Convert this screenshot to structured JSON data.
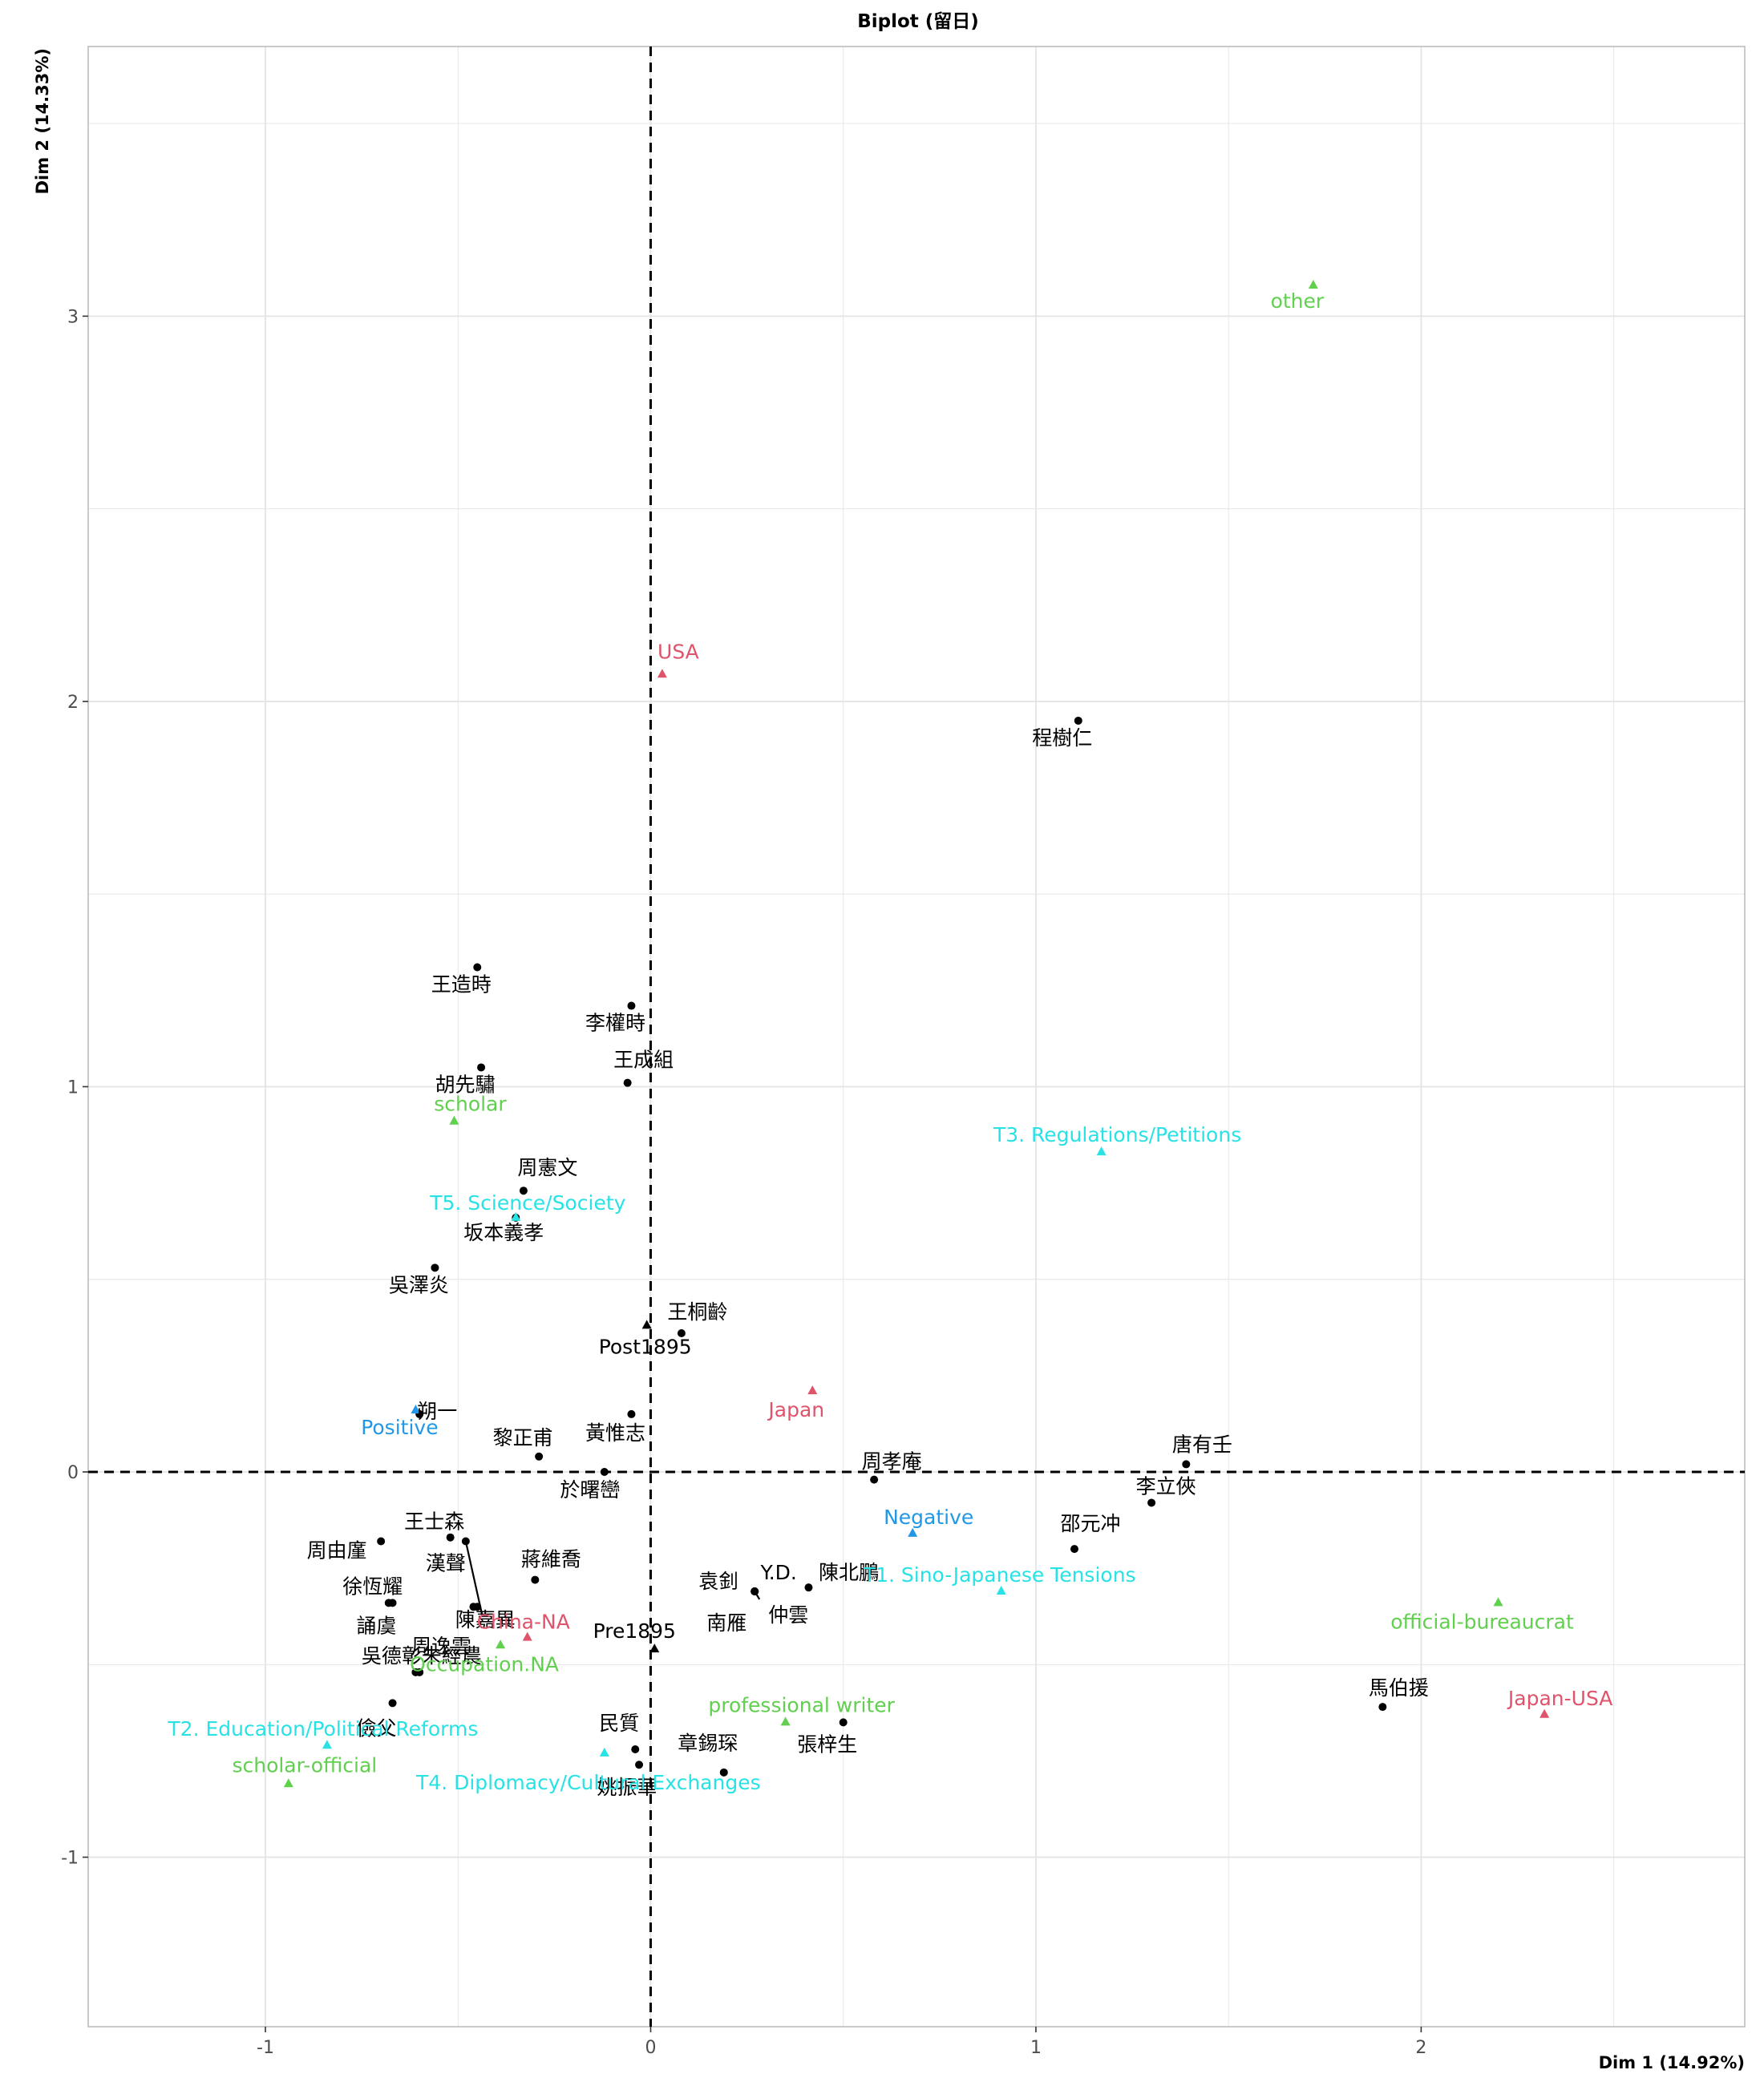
{
  "chart_data": {
    "type": "scatter",
    "title": "Biplot (留日)",
    "xlabel": "Dim 1 (14.92%)",
    "ylabel": "Dim 2 (14.33%)",
    "xlim": [
      -1.46,
      2.84
    ],
    "ylim": [
      -1.44,
      3.7
    ],
    "x_ticks": [
      -1,
      0,
      1,
      2
    ],
    "y_ticks": [
      -1,
      0,
      1,
      2,
      3
    ],
    "x_tick_labels": [
      "-1",
      "0",
      "1",
      "2"
    ],
    "y_tick_labels": [
      "-1",
      "0",
      "1",
      "2",
      "3"
    ],
    "grid": true,
    "reference_lines": {
      "x": 0,
      "y": 0,
      "style": "dashed"
    },
    "colors": {
      "individual": "#000000",
      "period": "#000000",
      "destination": "#DF536B",
      "occupation": "#61D04F",
      "topic": "#28E2E5",
      "sentiment": "#2297E6"
    },
    "individuals": [
      {
        "label": "程樹仁",
        "x": 1.11,
        "y": 1.95
      },
      {
        "label": "王造時",
        "x": -0.45,
        "y": 1.31
      },
      {
        "label": "李權時",
        "x": -0.05,
        "y": 1.21
      },
      {
        "label": "胡先驌",
        "x": -0.44,
        "y": 1.05
      },
      {
        "label": "王成組",
        "x": -0.06,
        "y": 1.01
      },
      {
        "label": "周憲文",
        "x": -0.33,
        "y": 0.73
      },
      {
        "label": "坂本義孝",
        "x": -0.35,
        "y": 0.66
      },
      {
        "label": "吳澤炎",
        "x": -0.56,
        "y": 0.53
      },
      {
        "label": "王桐齡",
        "x": 0.08,
        "y": 0.36
      },
      {
        "label": "朔一",
        "x": -0.6,
        "y": 0.15
      },
      {
        "label": "黃惟志",
        "x": -0.05,
        "y": 0.15
      },
      {
        "label": "黎正甫",
        "x": -0.29,
        "y": 0.04
      },
      {
        "label": "於曙巒",
        "x": -0.12,
        "y": 0.0
      },
      {
        "label": "周孝庵",
        "x": 0.58,
        "y": -0.02
      },
      {
        "label": "唐有壬",
        "x": 1.39,
        "y": 0.02
      },
      {
        "label": "李立俠",
        "x": 1.3,
        "y": -0.08
      },
      {
        "label": "王士森",
        "x": -0.52,
        "y": -0.17
      },
      {
        "label": "周由廑",
        "x": -0.7,
        "y": -0.18
      },
      {
        "label": "漢聲",
        "x": -0.48,
        "y": -0.18
      },
      {
        "label": "蔣維喬",
        "x": -0.3,
        "y": -0.28
      },
      {
        "label": "陳嘉異",
        "x": -0.45,
        "y": -0.35
      },
      {
        "label": "徐恆耀",
        "x": -0.68,
        "y": -0.34
      },
      {
        "label": "誦虞",
        "x": -0.67,
        "y": -0.34
      },
      {
        "label": "周逸雲",
        "x": -0.46,
        "y": -0.35
      },
      {
        "label": "邵元冲",
        "x": 1.1,
        "y": -0.2
      },
      {
        "label": "Y.D.",
        "x": 0.27,
        "y": -0.31
      },
      {
        "label": "陳北鵬",
        "x": 0.41,
        "y": -0.3
      },
      {
        "label": "袁釗",
        "x": 0.27,
        "y": -0.31
      },
      {
        "label": "南雁",
        "x": 0.27,
        "y": -0.31
      },
      {
        "label": "仲雲",
        "x": 0.27,
        "y": -0.31
      },
      {
        "label": "吳德彰",
        "x": -0.61,
        "y": -0.52
      },
      {
        "label": "朱經農",
        "x": -0.6,
        "y": -0.52
      },
      {
        "label": "儉父",
        "x": -0.67,
        "y": -0.6
      },
      {
        "label": "民質",
        "x": -0.04,
        "y": -0.72
      },
      {
        "label": "章錫琛",
        "x": 0.19,
        "y": -0.78
      },
      {
        "label": "姚振華",
        "x": -0.03,
        "y": -0.76
      },
      {
        "label": "張梓生",
        "x": 0.5,
        "y": -0.65
      },
      {
        "label": "馬伯援",
        "x": 1.9,
        "y": -0.61
      }
    ],
    "categories": [
      {
        "label": "other",
        "group": "occupation",
        "x": 1.72,
        "y": 3.08
      },
      {
        "label": "USA",
        "group": "destination",
        "x": 0.03,
        "y": 2.07
      },
      {
        "label": "scholar",
        "group": "occupation",
        "x": -0.51,
        "y": 0.91
      },
      {
        "label": "T3. Regulations/Petitions",
        "group": "topic",
        "x": 1.17,
        "y": 0.83
      },
      {
        "label": "T5. Science/Society",
        "group": "topic",
        "x": -0.35,
        "y": 0.66
      },
      {
        "label": "Post1895",
        "group": "period",
        "x": -0.01,
        "y": 0.38
      },
      {
        "label": "Japan",
        "group": "destination",
        "x": 0.42,
        "y": 0.21
      },
      {
        "label": "Positive",
        "group": "sentiment",
        "x": -0.61,
        "y": 0.16
      },
      {
        "label": "Negative",
        "group": "sentiment",
        "x": 0.68,
        "y": -0.16
      },
      {
        "label": "T1. Sino-Japanese Tensions",
        "group": "topic",
        "x": 0.91,
        "y": -0.31
      },
      {
        "label": "official-bureaucrat",
        "group": "occupation",
        "x": 2.2,
        "y": -0.34
      },
      {
        "label": "China-NA",
        "group": "destination",
        "x": -0.32,
        "y": -0.43
      },
      {
        "label": "Occupation.NA",
        "group": "occupation",
        "x": -0.39,
        "y": -0.45
      },
      {
        "label": "Pre1895",
        "group": "period",
        "x": 0.01,
        "y": -0.46
      },
      {
        "label": "Japan-USA",
        "group": "destination",
        "x": 2.32,
        "y": -0.63
      },
      {
        "label": "professional writer",
        "group": "occupation",
        "x": 0.35,
        "y": -0.65
      },
      {
        "label": "T2. Education/Political Reforms",
        "group": "topic",
        "x": -0.84,
        "y": -0.71
      },
      {
        "label": "T4. Diplomacy/Cultural Exchanges",
        "group": "topic",
        "x": -0.12,
        "y": -0.73
      },
      {
        "label": "scholar-official",
        "group": "occupation",
        "x": -0.94,
        "y": -0.81
      }
    ]
  }
}
